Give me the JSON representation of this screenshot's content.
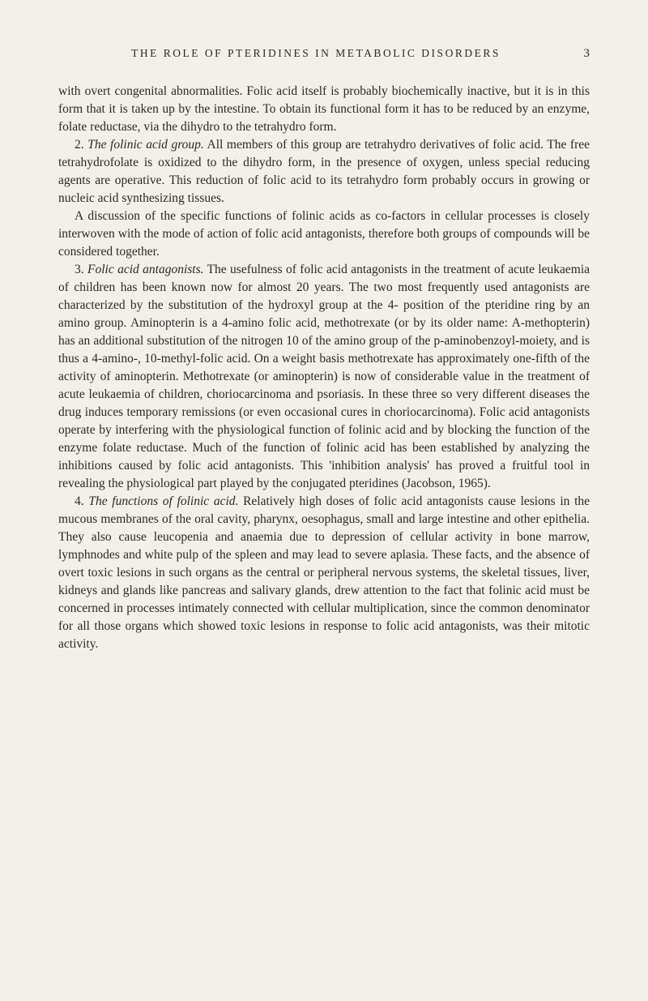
{
  "header": {
    "title": "THE ROLE OF PTERIDINES IN METABOLIC DISORDERS",
    "page_number": "3"
  },
  "paragraphs": {
    "p1": "with overt congenital abnormalities. Folic acid itself is probably biochemically inactive, but it is in this form that it is taken up by the intestine. To obtain its functional form it has to be reduced by an enzyme, folate reductase, via the dihydro to the tetrahydro form.",
    "p2_num": "2. ",
    "p2_italic": "The folinic acid group.",
    "p2_text": " All members of this group are tetrahydro derivatives of folic acid. The free tetrahydrofolate is oxidized to the dihydro form, in the presence of oxygen, unless special reducing agents are operative. This reduction of folic acid to its tetrahydro form probably occurs in growing or nucleic acid synthesizing tissues.",
    "p3": "A discussion of the specific functions of folinic acids as co-factors in cellular processes is closely interwoven with the mode of action of folic acid antagonists, therefore both groups of compounds will be considered together.",
    "p4_num": "3. ",
    "p4_italic": "Folic acid antagonists.",
    "p4_text": " The usefulness of folic acid antagonists in the treatment of acute leukaemia of children has been known now for almost 20 years. The two most frequently used antagonists are characterized by the substitution of the hydroxyl group at the 4- position of the pteridine ring by an amino group. Aminopterin is a 4-amino folic acid, methotrexate (or by its older name: A-methopterin) has an additional substitution of the nitrogen 10 of the amino group of the p-aminobenzoyl-moiety, and is thus a 4-amino-, 10-methyl-folic acid. On a weight basis methotrexate has approximately one-fifth of the activity of aminopterin. Methotrexate (or aminopterin) is now of considerable value in the treatment of acute leukaemia of children, choriocarcinoma and psoriasis. In these three so very different diseases the drug induces temporary remissions (or even occasional cures in choriocarcinoma). Folic acid antagonists operate by interfering with the physiological function of folinic acid and by blocking the function of the enzyme folate reductase. Much of the function of folinic acid has been established by analyzing the inhibitions caused by folic acid antagonists. This 'inhibition analysis' has proved a fruitful tool in revealing the physiological part played by the conjugated pteridines (Jacobson, 1965).",
    "p5_num": "4. ",
    "p5_italic": "The functions of folinic acid.",
    "p5_text": " Relatively high doses of folic acid antagonists cause lesions in the mucous membranes of the oral cavity, pharynx, oesophagus, small and large intestine and other epithelia. They also cause leucopenia and anaemia due to depression of cellular activity in bone marrow, lymphnodes and white pulp of the spleen and may lead to severe aplasia. These facts, and the absence of overt toxic lesions in such organs as the central or peripheral nervous systems, the skeletal tissues, liver, kidneys and glands like pancreas and salivary glands, drew attention to the fact that folinic acid must be concerned in processes intimately connected with cellular multiplication, since the common denominator for all those organs which showed toxic lesions in response to folic acid antagonists, was their mitotic activity."
  }
}
